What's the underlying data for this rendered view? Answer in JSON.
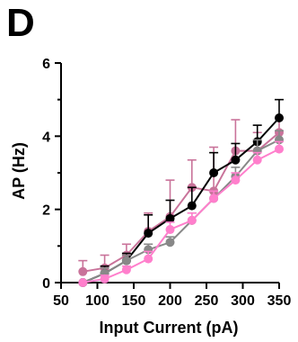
{
  "panel_label": "D",
  "chart_data": {
    "type": "line",
    "xlabel": "Input Current (pA)",
    "ylabel": "AP (Hz)",
    "xlim": [
      50,
      350
    ],
    "ylim": [
      0,
      6
    ],
    "xticks": [
      50,
      100,
      150,
      200,
      250,
      300,
      350
    ],
    "yticks": [
      0,
      2,
      4,
      6
    ],
    "x": [
      80,
      110,
      140,
      170,
      200,
      230,
      260,
      290,
      320,
      350
    ],
    "grid": false,
    "legend": "none",
    "series": [
      {
        "color": "#c9739a",
        "values": [
          0.3,
          0.4,
          0.75,
          1.4,
          1.8,
          2.6,
          2.5,
          3.6,
          3.6,
          4.1
        ],
        "errors": [
          0.3,
          0.35,
          0.3,
          0.5,
          1.0,
          0.75,
          1.2,
          0.85,
          0.5,
          0.4
        ]
      },
      {
        "color": "#000000",
        "values": [
          0.0,
          0.25,
          0.6,
          1.35,
          1.75,
          2.1,
          3.0,
          3.35,
          3.85,
          4.5
        ],
        "errors": [
          0.0,
          0.2,
          0.2,
          0.5,
          0.5,
          0.5,
          0.55,
          0.45,
          0.45,
          0.5
        ]
      },
      {
        "color": "#888888",
        "values": [
          0.0,
          0.25,
          0.6,
          0.9,
          1.1,
          1.7,
          2.3,
          2.9,
          3.6,
          3.9
        ],
        "errors": [
          0.0,
          0.15,
          0.15,
          0.15,
          0.15,
          0.2,
          0.2,
          0.25,
          0.3,
          0.25
        ]
      },
      {
        "color": "#ff7fcc",
        "values": [
          0.0,
          0.1,
          0.35,
          0.65,
          1.45,
          1.7,
          2.3,
          2.8,
          3.35,
          3.65
        ],
        "errors": [
          0.0,
          0.1,
          0.1,
          0.2,
          0.2,
          0.2,
          0.2,
          0.2,
          0.2,
          0.2
        ]
      }
    ]
  }
}
